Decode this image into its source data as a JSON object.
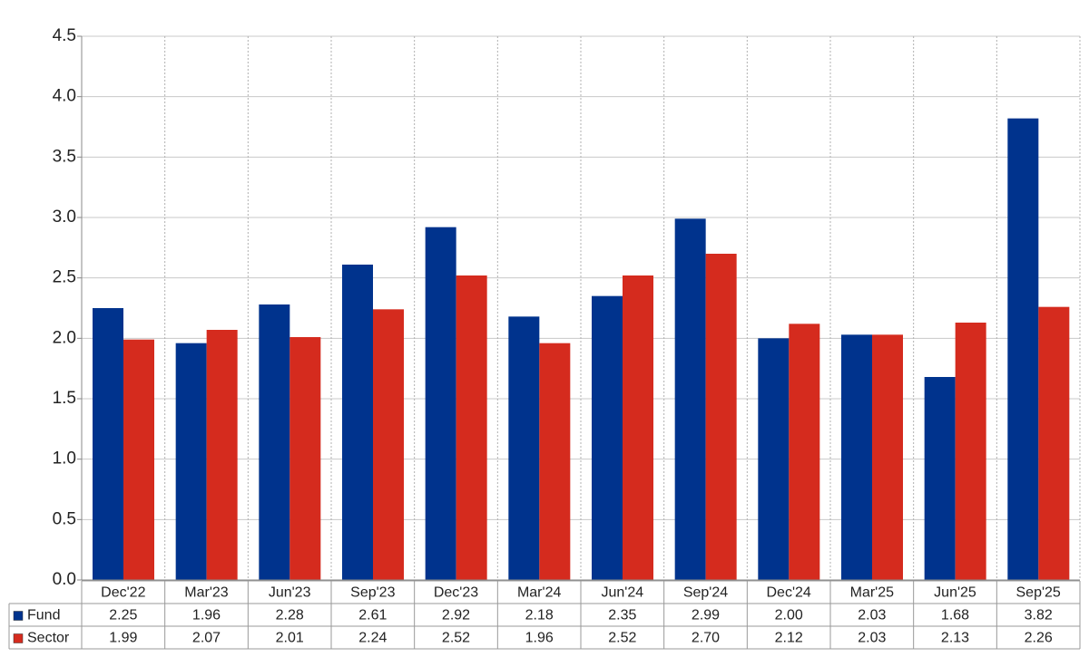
{
  "chart_data": {
    "type": "bar",
    "categories": [
      "Dec'22",
      "Mar'23",
      "Jun'23",
      "Sep'23",
      "Dec'23",
      "Mar'24",
      "Jun'24",
      "Sep'24",
      "Dec'24",
      "Mar'25",
      "Jun'25",
      "Sep'25"
    ],
    "series": [
      {
        "name": "Fund",
        "color": "#00338d",
        "values": [
          2.25,
          1.96,
          2.28,
          2.61,
          2.92,
          2.18,
          2.35,
          2.99,
          2.0,
          2.03,
          1.68,
          3.82
        ],
        "value_labels": [
          "2.25",
          "1.96",
          "2.28",
          "2.61",
          "2.92",
          "2.18",
          "2.35",
          "2.99",
          "2.00",
          "2.03",
          "1.68",
          "3.82"
        ]
      },
      {
        "name": "Sector",
        "color": "#d52b1e",
        "values": [
          1.99,
          2.07,
          2.01,
          2.24,
          2.52,
          1.96,
          2.52,
          2.7,
          2.12,
          2.03,
          2.13,
          2.26
        ],
        "value_labels": [
          "1.99",
          "2.07",
          "2.01",
          "2.24",
          "2.52",
          "1.96",
          "2.52",
          "2.70",
          "2.12",
          "2.03",
          "2.13",
          "2.26"
        ]
      }
    ],
    "ylim": [
      0,
      4.5
    ],
    "yticks": [
      {
        "value": 0,
        "label": "0.0"
      },
      0.5,
      {
        "value": 1,
        "label": "1.0"
      },
      1.5,
      {
        "value": 2,
        "label": "2.0"
      },
      2.5,
      {
        "value": 3,
        "label": "3.0"
      },
      3.5,
      {
        "value": 4,
        "label": "4.0"
      },
      4.5
    ],
    "grid": true
  }
}
